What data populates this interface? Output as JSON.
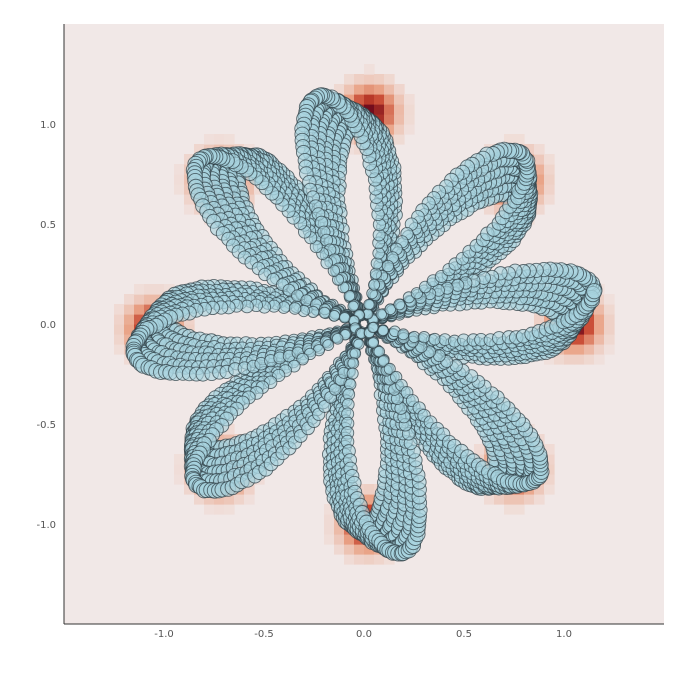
{
  "chart_data": {
    "type": "scatter",
    "title": "",
    "xlabel": "",
    "ylabel": "",
    "xlim": [
      -1.5,
      1.5
    ],
    "ylim": [
      -1.5,
      1.5
    ],
    "grid": false,
    "legend": "none",
    "xticks": [
      -1.0,
      -0.5,
      0.0,
      0.5,
      1.0
    ],
    "yticks": [
      1.0,
      0.5,
      0.0,
      -0.5,
      -1.0
    ],
    "xtick_labels": [
      "-1.0",
      "-0.5",
      "0.0",
      "0.5",
      "1.0"
    ],
    "ytick_labels": [
      "1.0",
      "0.5",
      "0.0",
      "-0.5",
      "-1.0"
    ],
    "scatter_series": {
      "shape": "rose curve r = 1.1·|cos(4θ)|, 8 petals",
      "petal_count": 8,
      "max_radius": 1.1,
      "petal_center_angles_deg": [
        0,
        45,
        90,
        135,
        180,
        225,
        270,
        315
      ],
      "marker_fill": "#a8d3df",
      "marker_edge": "#2f3f46",
      "marker_alpha": 0.6
    },
    "heatmap_layer": {
      "background_color": "#f1e8e7",
      "hotspots": [
        {
          "x": 1.05,
          "y": 0.0
        },
        {
          "x": 0.75,
          "y": 0.72
        },
        {
          "x": 0.03,
          "y": 1.06
        },
        {
          "x": -0.72,
          "y": 0.72
        },
        {
          "x": -1.05,
          "y": -0.02
        },
        {
          "x": -0.72,
          "y": -0.72
        },
        {
          "x": 0.02,
          "y": -1.0
        },
        {
          "x": 0.75,
          "y": -0.72
        }
      ],
      "hot_color": "#6e0a1c",
      "mid_color": "#c5412b",
      "warm_color": "#e9a285"
    }
  }
}
